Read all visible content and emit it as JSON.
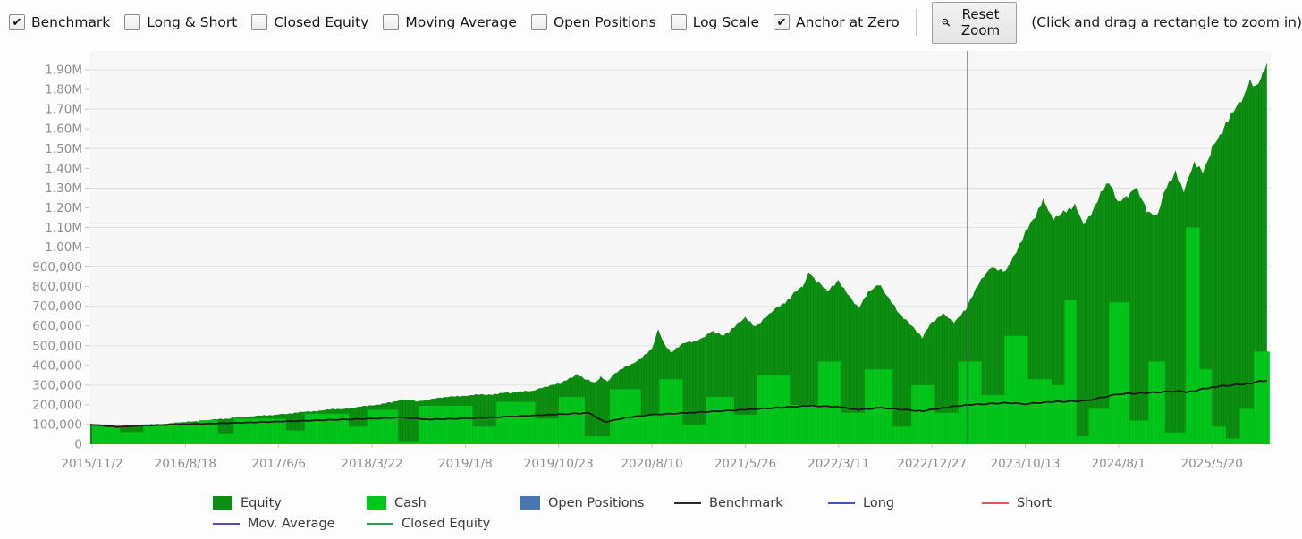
{
  "toolbar": {
    "checkboxes": [
      {
        "label": "Benchmark",
        "checked": true
      },
      {
        "label": "Long & Short",
        "checked": false
      },
      {
        "label": "Closed Equity",
        "checked": false
      },
      {
        "label": "Moving Average",
        "checked": false
      },
      {
        "label": "Open Positions",
        "checked": false
      },
      {
        "label": "Log Scale",
        "checked": false
      },
      {
        "label": "Anchor at Zero",
        "checked": true
      }
    ],
    "reset_zoom_label": "Reset Zoom",
    "hint": "(Click and drag a rectangle to zoom in)"
  },
  "colors": {
    "equity": "#0c8f10",
    "cash": "#00c81a",
    "open_positions": "#4679b2",
    "benchmark": "#1c1c1c",
    "long": "#4353c0",
    "short": "#e05858",
    "mov_average": "#524ab8",
    "closed_equity": "#2d9e50",
    "plot_bg": "#f7f7f7",
    "gridline": "#e2e2e2",
    "axis_text": "#8f8f8f",
    "crosshair": "#555555"
  },
  "chart_data": {
    "type": "area",
    "title": "",
    "xlabel": "",
    "ylabel": "",
    "ylim": [
      0,
      1995000
    ],
    "grid": "horizontal gridlines every 200,000 (at 100,000 / 300,000 ... 1.90M)",
    "legend_position": "bottom",
    "x_tick_labels": [
      "2015/11/2",
      "2016/8/18",
      "2017/6/6",
      "2018/3/22",
      "2019/1/8",
      "2019/10/23",
      "2020/8/10",
      "2021/5/26",
      "2022/3/11",
      "2022/12/27",
      "2023/10/13",
      "2024/8/1",
      "2025/5/20"
    ],
    "y_ticks": [
      {
        "v": 1900000,
        "label": "1.90M"
      },
      {
        "v": 1800000,
        "label": "1.80M"
      },
      {
        "v": 1700000,
        "label": "1.70M"
      },
      {
        "v": 1600000,
        "label": "1.60M"
      },
      {
        "v": 1500000,
        "label": "1.50M"
      },
      {
        "v": 1400000,
        "label": "1.40M"
      },
      {
        "v": 1300000,
        "label": "1.30M"
      },
      {
        "v": 1200000,
        "label": "1.20M"
      },
      {
        "v": 1100000,
        "label": "1.10M"
      },
      {
        "v": 1000000,
        "label": "1.00M"
      },
      {
        "v": 900000,
        "label": "900,000"
      },
      {
        "v": 800000,
        "label": "800,000"
      },
      {
        "v": 700000,
        "label": "700,000"
      },
      {
        "v": 600000,
        "label": "600,000"
      },
      {
        "v": 500000,
        "label": "500,000"
      },
      {
        "v": 400000,
        "label": "400,000"
      },
      {
        "v": 300000,
        "label": "300,000"
      },
      {
        "v": 200000,
        "label": "200,000"
      },
      {
        "v": 100000,
        "label": "100,000"
      },
      {
        "v": 0,
        "label": "0"
      }
    ],
    "x_unit": "x expressed in x-tick-label index units (0 = 2015/11/2, 12 = 2025/5/20, ~290 days per unit)",
    "crosshair_x": 9.381,
    "series": [
      {
        "name": "Equity",
        "type": "area",
        "color": "#0c8f10",
        "points": [
          [
            -0.02,
            100000
          ],
          [
            0,
            100000
          ],
          [
            0.26,
            92000
          ],
          [
            0.55,
            97000
          ],
          [
            1.0,
            112000
          ],
          [
            1.5,
            133000
          ],
          [
            2.0,
            152000
          ],
          [
            2.46,
            172000
          ],
          [
            2.8,
            185000
          ],
          [
            3.0,
            198000
          ],
          [
            3.18,
            210000
          ],
          [
            3.32,
            228000
          ],
          [
            3.47,
            218000
          ],
          [
            3.61,
            228000
          ],
          [
            3.8,
            238000
          ],
          [
            4.0,
            248000
          ],
          [
            4.23,
            252000
          ],
          [
            4.47,
            262000
          ],
          [
            4.71,
            270000
          ],
          [
            4.9,
            295000
          ],
          [
            5.03,
            310000
          ],
          [
            5.19,
            352000
          ],
          [
            5.29,
            330000
          ],
          [
            5.38,
            310000
          ],
          [
            5.45,
            340000
          ],
          [
            5.52,
            318000
          ],
          [
            5.6,
            360000
          ],
          [
            5.72,
            392000
          ],
          [
            5.86,
            430000
          ],
          [
            6.0,
            480000
          ],
          [
            6.07,
            585000
          ],
          [
            6.13,
            505000
          ],
          [
            6.2,
            468000
          ],
          [
            6.34,
            510000
          ],
          [
            6.48,
            525000
          ],
          [
            6.63,
            570000
          ],
          [
            6.77,
            555000
          ],
          [
            6.92,
            610000
          ],
          [
            7.0,
            640000
          ],
          [
            7.11,
            600000
          ],
          [
            7.25,
            660000
          ],
          [
            7.37,
            700000
          ],
          [
            7.49,
            750000
          ],
          [
            7.61,
            800000
          ],
          [
            7.68,
            870000
          ],
          [
            7.78,
            820000
          ],
          [
            7.87,
            780000
          ],
          [
            8.0,
            830000
          ],
          [
            8.11,
            760000
          ],
          [
            8.21,
            690000
          ],
          [
            8.32,
            780000
          ],
          [
            8.45,
            810000
          ],
          [
            8.54,
            735000
          ],
          [
            8.67,
            650000
          ],
          [
            8.78,
            600000
          ],
          [
            8.9,
            545000
          ],
          [
            9.0,
            620000
          ],
          [
            9.12,
            660000
          ],
          [
            9.25,
            620000
          ],
          [
            9.381,
            700000
          ],
          [
            9.5,
            820000
          ],
          [
            9.65,
            900000
          ],
          [
            9.79,
            880000
          ],
          [
            9.88,
            950000
          ],
          [
            10.0,
            1080000
          ],
          [
            10.11,
            1150000
          ],
          [
            10.19,
            1235000
          ],
          [
            10.3,
            1140000
          ],
          [
            10.41,
            1185000
          ],
          [
            10.53,
            1210000
          ],
          [
            10.62,
            1120000
          ],
          [
            10.72,
            1180000
          ],
          [
            10.81,
            1280000
          ],
          [
            10.91,
            1330000
          ],
          [
            11.0,
            1220000
          ],
          [
            11.1,
            1260000
          ],
          [
            11.2,
            1300000
          ],
          [
            11.3,
            1190000
          ],
          [
            11.42,
            1160000
          ],
          [
            11.51,
            1310000
          ],
          [
            11.61,
            1380000
          ],
          [
            11.7,
            1290000
          ],
          [
            11.81,
            1420000
          ],
          [
            11.9,
            1380000
          ],
          [
            12.0,
            1500000
          ],
          [
            12.12,
            1600000
          ],
          [
            12.23,
            1680000
          ],
          [
            12.33,
            1750000
          ],
          [
            12.41,
            1840000
          ],
          [
            12.47,
            1800000
          ],
          [
            12.54,
            1870000
          ],
          [
            12.59,
            1935000
          ]
        ]
      },
      {
        "name": "Cash",
        "type": "step-bars",
        "color": "#00c81a",
        "steps": [
          [
            0,
            0.3,
            95000
          ],
          [
            0.3,
            0.55,
            62000
          ],
          [
            0.55,
            1.15,
            100000
          ],
          [
            1.15,
            1.35,
            122000
          ],
          [
            1.35,
            1.52,
            55000
          ],
          [
            1.52,
            2.08,
            130000
          ],
          [
            2.08,
            2.28,
            70000
          ],
          [
            2.28,
            2.75,
            155000
          ],
          [
            2.75,
            2.95,
            90000
          ],
          [
            2.95,
            3.28,
            175000
          ],
          [
            3.28,
            3.5,
            15000
          ],
          [
            3.5,
            4.08,
            195000
          ],
          [
            4.08,
            4.33,
            90000
          ],
          [
            4.33,
            4.75,
            215000
          ],
          [
            4.75,
            5.0,
            130000
          ],
          [
            5.0,
            5.28,
            240000
          ],
          [
            5.28,
            5.55,
            40000
          ],
          [
            5.55,
            5.88,
            280000
          ],
          [
            5.88,
            6.08,
            150000
          ],
          [
            6.08,
            6.33,
            330000
          ],
          [
            6.33,
            6.58,
            100000
          ],
          [
            6.58,
            6.88,
            240000
          ],
          [
            6.88,
            7.13,
            150000
          ],
          [
            7.13,
            7.48,
            350000
          ],
          [
            7.48,
            7.78,
            200000
          ],
          [
            7.78,
            8.03,
            420000
          ],
          [
            8.03,
            8.28,
            160000
          ],
          [
            8.28,
            8.58,
            380000
          ],
          [
            8.58,
            8.78,
            90000
          ],
          [
            8.78,
            9.03,
            300000
          ],
          [
            9.03,
            9.28,
            160000
          ],
          [
            9.28,
            9.53,
            420000
          ],
          [
            9.53,
            9.78,
            250000
          ],
          [
            9.78,
            10.03,
            550000
          ],
          [
            10.03,
            10.28,
            330000
          ],
          [
            10.28,
            10.42,
            300000
          ],
          [
            10.42,
            10.55,
            730000
          ],
          [
            10.55,
            10.68,
            40000
          ],
          [
            10.68,
            10.9,
            180000
          ],
          [
            10.9,
            11.12,
            720000
          ],
          [
            11.12,
            11.32,
            120000
          ],
          [
            11.32,
            11.5,
            420000
          ],
          [
            11.5,
            11.72,
            60000
          ],
          [
            11.72,
            11.87,
            1100000
          ],
          [
            11.87,
            12.0,
            380000
          ],
          [
            12.0,
            12.15,
            90000
          ],
          [
            12.15,
            12.3,
            30000
          ],
          [
            12.3,
            12.45,
            180000
          ],
          [
            12.45,
            12.62,
            470000
          ]
        ]
      },
      {
        "name": "Benchmark",
        "type": "line",
        "color": "#1c1c1c",
        "points": [
          [
            -0.02,
            100000
          ],
          [
            0,
            100000
          ],
          [
            0.26,
            88000
          ],
          [
            0.55,
            95000
          ],
          [
            1.0,
            101000
          ],
          [
            1.5,
            108000
          ],
          [
            2.0,
            115000
          ],
          [
            2.46,
            122000
          ],
          [
            3.0,
            130000
          ],
          [
            3.32,
            136000
          ],
          [
            3.61,
            126000
          ],
          [
            4.0,
            131000
          ],
          [
            4.47,
            140000
          ],
          [
            5.0,
            152000
          ],
          [
            5.32,
            159000
          ],
          [
            5.5,
            113000
          ],
          [
            5.72,
            135000
          ],
          [
            6.0,
            150000
          ],
          [
            6.4,
            160000
          ],
          [
            7.0,
            175000
          ],
          [
            7.68,
            195000
          ],
          [
            8.0,
            190000
          ],
          [
            8.21,
            175000
          ],
          [
            8.45,
            185000
          ],
          [
            8.9,
            168000
          ],
          [
            9.12,
            185000
          ],
          [
            9.381,
            200000
          ],
          [
            9.8,
            210000
          ],
          [
            10.0,
            205000
          ],
          [
            10.3,
            215000
          ],
          [
            10.65,
            220000
          ],
          [
            11.0,
            255000
          ],
          [
            11.3,
            260000
          ],
          [
            11.61,
            270000
          ],
          [
            11.75,
            265000
          ],
          [
            12.0,
            290000
          ],
          [
            12.23,
            300000
          ],
          [
            12.41,
            310000
          ],
          [
            12.59,
            325000
          ]
        ]
      }
    ]
  },
  "legend": {
    "rows": [
      [
        {
          "label": "Equity",
          "swatch": "fill",
          "color": "#0c8f10"
        },
        {
          "label": "Cash",
          "swatch": "fill",
          "color": "#00c81a"
        },
        {
          "label": "Open Positions",
          "swatch": "fill",
          "color": "#4679b2"
        },
        {
          "label": "Benchmark",
          "swatch": "line",
          "color": "#2a2a2a"
        },
        {
          "label": "Long",
          "swatch": "line",
          "color": "#4353c0"
        },
        {
          "label": "Short",
          "swatch": "line",
          "color": "#e05858"
        }
      ],
      [
        {
          "label": "Mov. Average",
          "swatch": "line",
          "color": "#524ab8"
        },
        {
          "label": "Closed Equity",
          "swatch": "line",
          "color": "#2d9e50"
        }
      ]
    ]
  }
}
